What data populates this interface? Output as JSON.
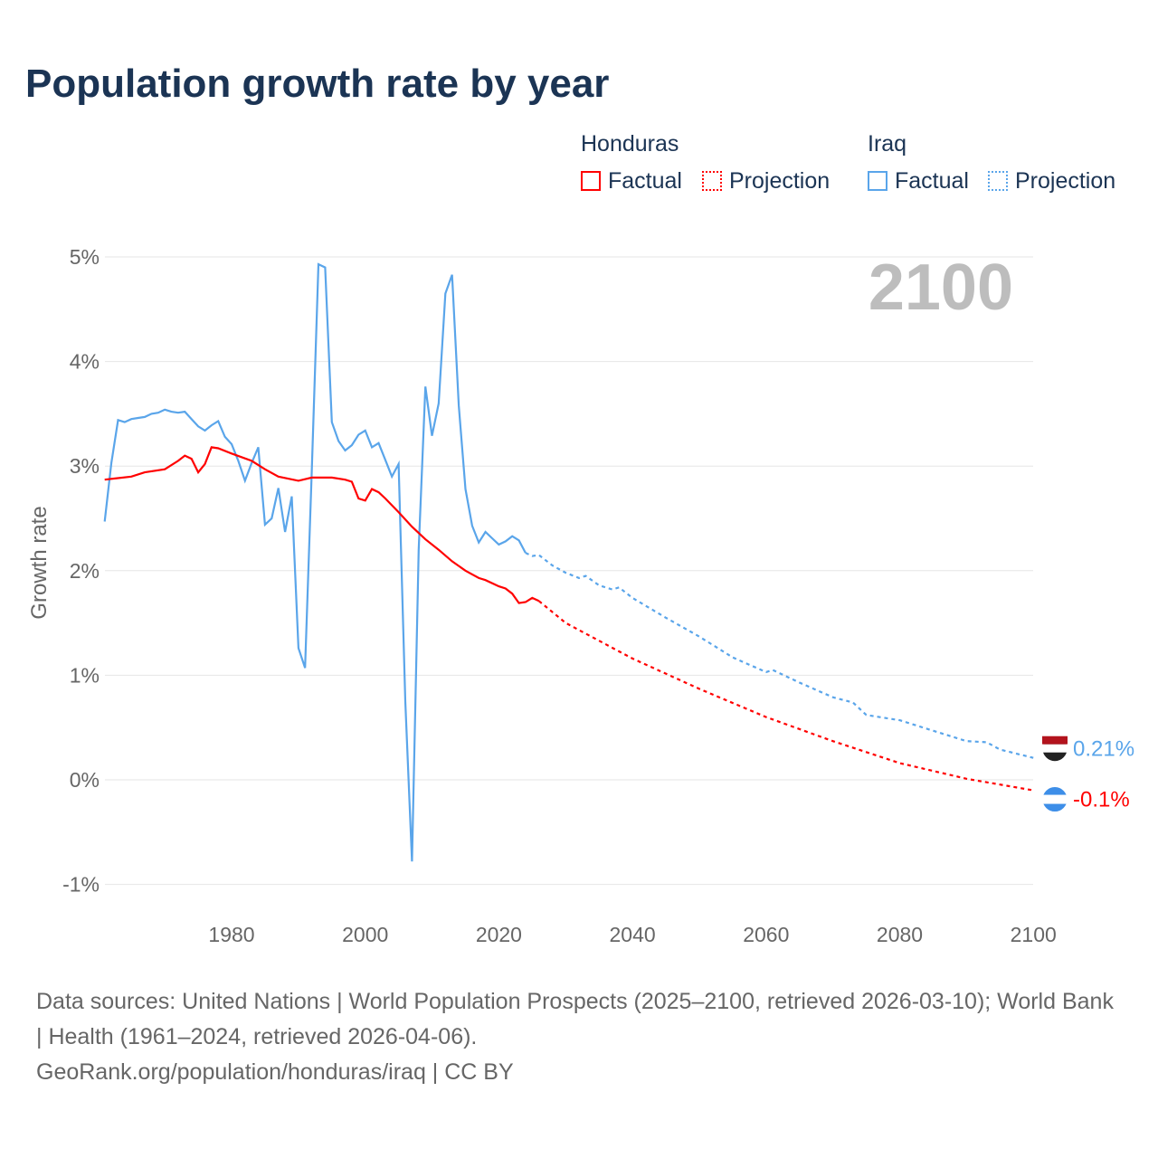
{
  "title": "Population growth rate by year",
  "legend": {
    "groups": [
      {
        "name": "Honduras",
        "factual": "Factual",
        "projection": "Projection",
        "color": "#ff0000"
      },
      {
        "name": "Iraq",
        "factual": "Factual",
        "projection": "Projection",
        "color": "#5aa5ea"
      }
    ]
  },
  "year_label": "2100",
  "sources": {
    "line1": "Data sources: United Nations | World Population Prospects (2025–2100, retrieved 2026-03-10); World Bank | Health (1961–2024, retrieved 2026-04-06).",
    "line2": "GeoRank.org/population/honduras/iraq | CC BY"
  },
  "chart_data": {
    "type": "line",
    "title": "Population growth rate by year",
    "xlabel": "",
    "ylabel": "Growth rate",
    "xlim": [
      1961,
      2100
    ],
    "ylim": [
      -1,
      5
    ],
    "xticks": [
      "1980",
      "2000",
      "2020",
      "2040",
      "2060",
      "2080",
      "2100"
    ],
    "yticks": [
      "-1%",
      "0%",
      "1%",
      "2%",
      "3%",
      "4%",
      "5%"
    ],
    "grid": true,
    "series": [
      {
        "name": "Iraq",
        "color": "#5aa5ea",
        "end_label": "0.21%",
        "factual": [
          [
            1961,
            2.47
          ],
          [
            1962,
            3.03
          ],
          [
            1963,
            3.44
          ],
          [
            1964,
            3.42
          ],
          [
            1965,
            3.45
          ],
          [
            1966,
            3.46
          ],
          [
            1967,
            3.47
          ],
          [
            1968,
            3.5
          ],
          [
            1969,
            3.51
          ],
          [
            1970,
            3.54
          ],
          [
            1971,
            3.52
          ],
          [
            1972,
            3.51
          ],
          [
            1973,
            3.52
          ],
          [
            1974,
            3.45
          ],
          [
            1975,
            3.38
          ],
          [
            1976,
            3.34
          ],
          [
            1977,
            3.39
          ],
          [
            1978,
            3.43
          ],
          [
            1979,
            3.28
          ],
          [
            1980,
            3.21
          ],
          [
            1981,
            3.05
          ],
          [
            1982,
            2.86
          ],
          [
            1983,
            3.03
          ],
          [
            1984,
            3.18
          ],
          [
            1985,
            2.44
          ],
          [
            1986,
            2.5
          ],
          [
            1987,
            2.79
          ],
          [
            1988,
            2.37
          ],
          [
            1989,
            2.71
          ],
          [
            1990,
            1.26
          ],
          [
            1991,
            1.07
          ],
          [
            1992,
            2.95
          ],
          [
            1993,
            4.93
          ],
          [
            1994,
            4.9
          ],
          [
            1995,
            3.42
          ],
          [
            1996,
            3.24
          ],
          [
            1997,
            3.15
          ],
          [
            1998,
            3.2
          ],
          [
            1999,
            3.3
          ],
          [
            2000,
            3.34
          ],
          [
            2001,
            3.18
          ],
          [
            2002,
            3.22
          ],
          [
            2003,
            3.06
          ],
          [
            2004,
            2.9
          ],
          [
            2005,
            3.02
          ],
          [
            2006,
            0.75
          ],
          [
            2007,
            -0.78
          ],
          [
            2008,
            2.2
          ],
          [
            2009,
            3.76
          ],
          [
            2010,
            3.29
          ],
          [
            2011,
            3.6
          ],
          [
            2012,
            4.65
          ],
          [
            2013,
            4.83
          ],
          [
            2014,
            3.58
          ],
          [
            2015,
            2.78
          ],
          [
            2016,
            2.43
          ],
          [
            2017,
            2.27
          ],
          [
            2018,
            2.37
          ],
          [
            2019,
            2.31
          ],
          [
            2020,
            2.25
          ],
          [
            2021,
            2.28
          ],
          [
            2022,
            2.33
          ],
          [
            2023,
            2.29
          ],
          [
            2024,
            2.17
          ]
        ],
        "projection": [
          [
            2024,
            2.17
          ],
          [
            2025,
            2.14
          ],
          [
            2026,
            2.15
          ],
          [
            2028,
            2.05
          ],
          [
            2030,
            1.98
          ],
          [
            2032,
            1.93
          ],
          [
            2033,
            1.95
          ],
          [
            2035,
            1.86
          ],
          [
            2037,
            1.82
          ],
          [
            2038,
            1.84
          ],
          [
            2040,
            1.74
          ],
          [
            2045,
            1.55
          ],
          [
            2050,
            1.37
          ],
          [
            2055,
            1.17
          ],
          [
            2060,
            1.03
          ],
          [
            2061,
            1.05
          ],
          [
            2065,
            0.93
          ],
          [
            2070,
            0.79
          ],
          [
            2073,
            0.74
          ],
          [
            2075,
            0.62
          ],
          [
            2080,
            0.57
          ],
          [
            2085,
            0.47
          ],
          [
            2090,
            0.37
          ],
          [
            2093,
            0.36
          ],
          [
            2095,
            0.29
          ],
          [
            2100,
            0.21
          ]
        ]
      },
      {
        "name": "Honduras",
        "color": "#ff0000",
        "end_label": "-0.1%",
        "factual": [
          [
            1961,
            2.87
          ],
          [
            1965,
            2.9
          ],
          [
            1967,
            2.94
          ],
          [
            1970,
            2.97
          ],
          [
            1972,
            3.05
          ],
          [
            1973,
            3.1
          ],
          [
            1974,
            3.07
          ],
          [
            1975,
            2.94
          ],
          [
            1976,
            3.02
          ],
          [
            1977,
            3.18
          ],
          [
            1978,
            3.17
          ],
          [
            1980,
            3.12
          ],
          [
            1983,
            3.05
          ],
          [
            1985,
            2.97
          ],
          [
            1987,
            2.9
          ],
          [
            1990,
            2.86
          ],
          [
            1992,
            2.89
          ],
          [
            1995,
            2.89
          ],
          [
            1997,
            2.87
          ],
          [
            1998,
            2.85
          ],
          [
            1999,
            2.69
          ],
          [
            2000,
            2.67
          ],
          [
            2001,
            2.78
          ],
          [
            2002,
            2.75
          ],
          [
            2003,
            2.69
          ],
          [
            2005,
            2.56
          ],
          [
            2007,
            2.42
          ],
          [
            2009,
            2.3
          ],
          [
            2011,
            2.2
          ],
          [
            2013,
            2.09
          ],
          [
            2015,
            2.0
          ],
          [
            2017,
            1.93
          ],
          [
            2018,
            1.91
          ],
          [
            2020,
            1.85
          ],
          [
            2021,
            1.83
          ],
          [
            2022,
            1.78
          ],
          [
            2023,
            1.69
          ],
          [
            2024,
            1.7
          ],
          [
            2025,
            1.74
          ],
          [
            2026,
            1.71
          ]
        ],
        "projection": [
          [
            2026,
            1.71
          ],
          [
            2030,
            1.5
          ],
          [
            2040,
            1.16
          ],
          [
            2050,
            0.87
          ],
          [
            2060,
            0.6
          ],
          [
            2070,
            0.37
          ],
          [
            2080,
            0.16
          ],
          [
            2090,
            0.01
          ],
          [
            2100,
            -0.1
          ]
        ]
      }
    ]
  }
}
